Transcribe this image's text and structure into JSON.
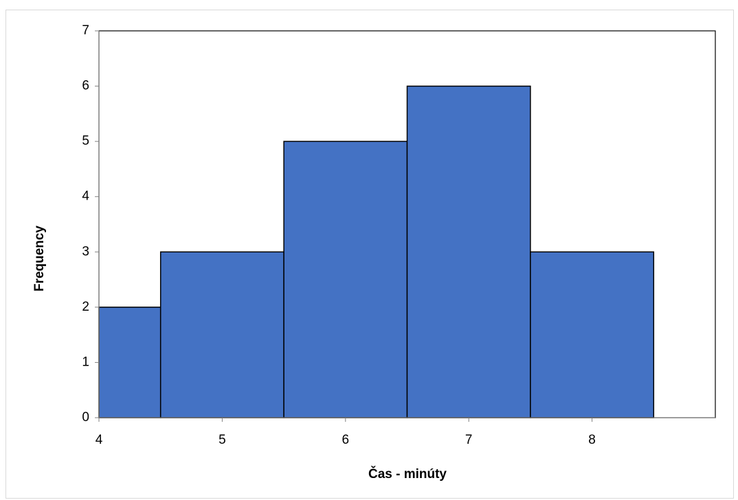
{
  "chart_data": {
    "type": "histogram",
    "x_label": "Čas - minúty",
    "y_label": "Frequency",
    "bins": [
      4,
      4.5,
      5.5,
      6.5,
      7.5,
      8.5
    ],
    "values": [
      2,
      3,
      5,
      6,
      3
    ],
    "color": "#4472c4",
    "xlim": [
      4,
      9
    ],
    "xticks": [
      4,
      5,
      6,
      7,
      8
    ],
    "ylim": [
      0,
      7
    ],
    "yticks": [
      0,
      1,
      2,
      3,
      4,
      5,
      6,
      7
    ]
  }
}
